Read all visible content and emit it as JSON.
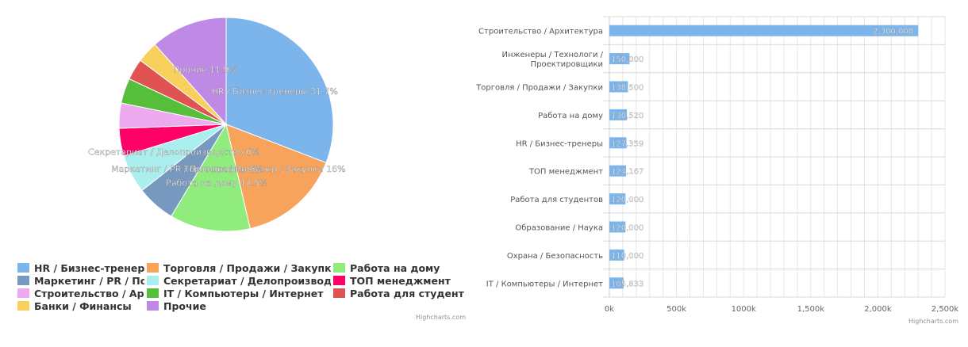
{
  "charts": {
    "pie": {
      "type": "pie",
      "slices": [
        {
          "name": "HR / Бизнес-тренеры",
          "label": "HR / Бизнес-тренеры 31.7%",
          "value": 31.7,
          "color": "#7cb5ec"
        },
        {
          "name": "Торговля / Продажи / Закупки",
          "label": "Торговля / Продажи / Закупки 16%",
          "value": 16,
          "color": "#f7a35c"
        },
        {
          "name": "Работа на дому",
          "label": "Работа на дому 12.5%",
          "value": 12.5,
          "color": "#90ed7d"
        },
        {
          "name": "Маркетинг / PR / Полиграфия",
          "label": "Маркетинг / PR / Полиграфия 6%",
          "value": 6,
          "color": "#7798bf"
        },
        {
          "name": "Секретариат / Делопроизводство",
          "label": "Секретариат / Делопроизводство 6%",
          "value": 6,
          "color": "#aaeeee"
        },
        {
          "name": "ТОП менеджмент",
          "label": "",
          "value": 4.3,
          "color": "#ff0066"
        },
        {
          "name": "Строительство / Архитектура",
          "label": "",
          "value": 3.9,
          "color": "#eeaaee"
        },
        {
          "name": "IT / Компьютеры / Интернет",
          "label": "",
          "value": 3.9,
          "color": "#55bf3b"
        },
        {
          "name": "Работа для студентов",
          "label": "",
          "value": 3.3,
          "color": "#df5353"
        },
        {
          "name": "Банки / Финансы",
          "label": "",
          "value": 3.3,
          "color": "#f7d15c"
        },
        {
          "name": "Прочие",
          "label": "Прочие 11.9%",
          "value": 11.9,
          "color": "#bf8ae6"
        }
      ],
      "credits": "Highcharts.com"
    },
    "bar": {
      "type": "bar",
      "categories": [
        "Строительство / Архитектура",
        "Инженеры / Технологи / Проектировщики",
        "Торговля / Продажи / Закупки",
        "Работа на дому",
        "HR / Бизнес-тренеры",
        "ТОП менеджмент",
        "Работа для студентов",
        "Образование / Наука",
        "Охрана / Безопасность",
        "IT / Компьютеры / Интернет"
      ],
      "values": [
        2300000,
        150000,
        138500,
        130520,
        127359,
        124167,
        120000,
        120000,
        110000,
        105833
      ],
      "data_labels": [
        "2,300,000",
        "150,000",
        "138,500",
        "130,520",
        "127,359",
        "124,167",
        "120,000",
        "120,000",
        "110,000",
        "105,833"
      ],
      "color": "#7cb5ec",
      "xlim": [
        0,
        2500000
      ],
      "ticks": [
        0,
        500000,
        1000000,
        1500000,
        2000000,
        2500000
      ],
      "tick_labels": [
        "0k",
        "500k",
        "1000k",
        "1,500k",
        "2,000k",
        "2,500k"
      ],
      "grid": true,
      "credits": "Highcharts.com"
    }
  },
  "chart_data": [
    {
      "type": "pie",
      "categories": [
        "HR / Бизнес-тренеры",
        "Торговля / Продажи / Закупки",
        "Работа на дому",
        "Маркетинг / PR / Полиграфия",
        "Секретариат / Делопроизводство",
        "ТОП менеджмент",
        "Строительство / Архитектура",
        "IT / Компьютеры / Интернет",
        "Работа для студентов",
        "Банки / Финансы",
        "Прочие"
      ],
      "values": [
        31.7,
        16,
        12.5,
        6,
        6,
        4.3,
        3.9,
        3.9,
        3.3,
        3.3,
        11.9
      ],
      "legend": "bottom"
    },
    {
      "type": "bar",
      "categories": [
        "Строительство / Архитектура",
        "Инженеры / Технологи / Проектировщики",
        "Торговля / Продажи / Закупки",
        "Работа на дому",
        "HR / Бизнес-тренеры",
        "ТОП менеджмент",
        "Работа для студентов",
        "Образование / Наука",
        "Охрана / Безопасность",
        "IT / Компьютеры / Интернет"
      ],
      "values": [
        2300000,
        150000,
        138500,
        130520,
        127359,
        124167,
        120000,
        120000,
        110000,
        105833
      ],
      "xlim": [
        0,
        2500000
      ],
      "grid": true
    }
  ]
}
